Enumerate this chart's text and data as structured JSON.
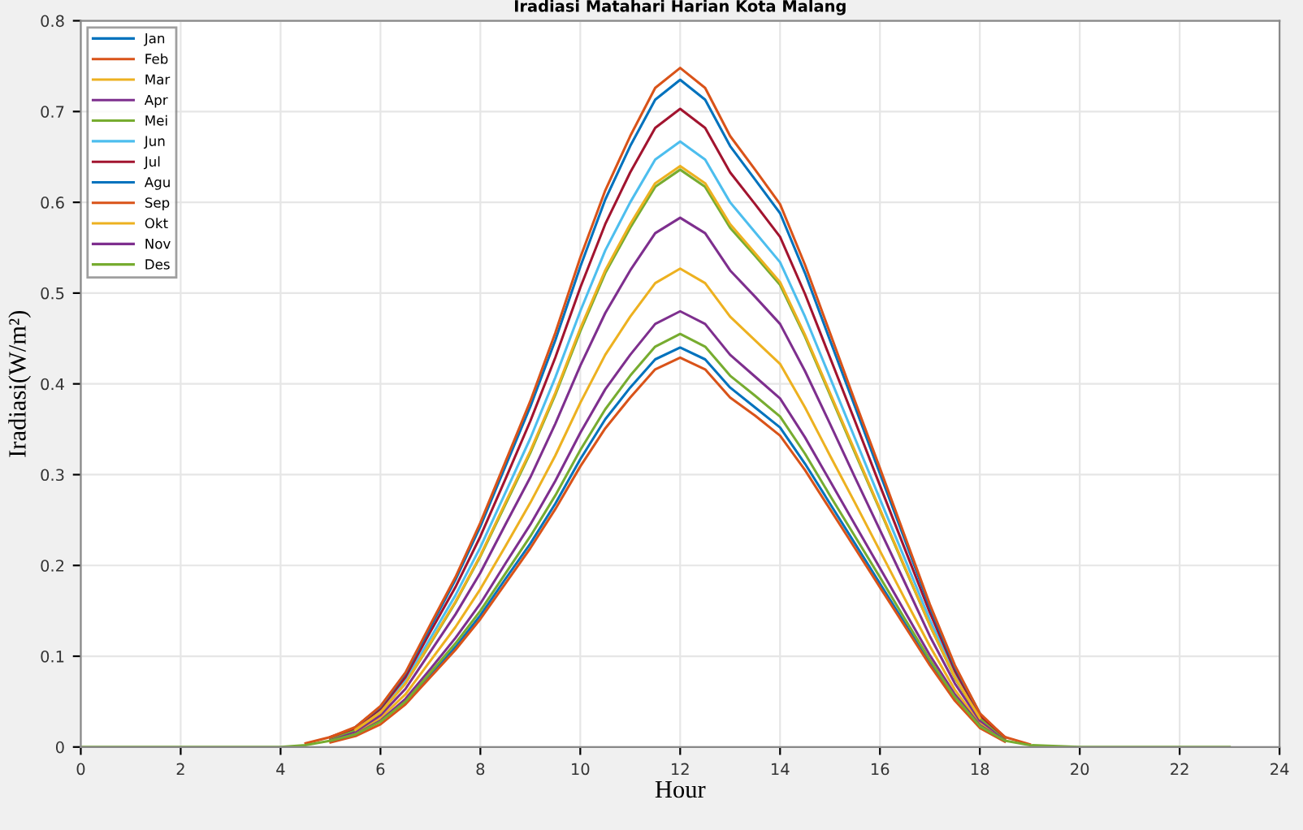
{
  "chart_data": {
    "type": "line",
    "title": "Iradiasi Matahari Harian Kota Malang",
    "xlabel": "Hour",
    "ylabel": "Iradiasi(W/m²)",
    "x": [
      0,
      4,
      4.5,
      5,
      5.5,
      6,
      6.5,
      7,
      7.5,
      8,
      8.5,
      9,
      9.5,
      10,
      10.5,
      11,
      11.5,
      12,
      12.5,
      13,
      13.5,
      14,
      14.5,
      15,
      15.5,
      16,
      16.5,
      17,
      17.5,
      18,
      18.5,
      19,
      20,
      23
    ],
    "xlim": [
      0,
      24
    ],
    "xticks": [
      0,
      2,
      4,
      6,
      8,
      10,
      12,
      14,
      16,
      18,
      20,
      22,
      24
    ],
    "ylim": [
      0,
      0.8
    ],
    "yticks": [
      0,
      0.1,
      0.2,
      0.3,
      0.4,
      0.5,
      0.6,
      0.7,
      0.8
    ],
    "grid": true,
    "legend": "top left",
    "series": [
      {
        "name": "Jan",
        "color": "#0072bd",
        "values": [
          null,
          null,
          null,
          null,
          null,
          null,
          0.048,
          0.079,
          0.11,
          0.145,
          0.185,
          0.224,
          0.268,
          0.317,
          0.361,
          0.396,
          0.427,
          0.44,
          0.427,
          0.396,
          0.374,
          0.352,
          0.312,
          0.268,
          0.224,
          0.18,
          0.136,
          0.092,
          0.053,
          null,
          null,
          null,
          null,
          null
        ]
      },
      {
        "name": "Feb",
        "color": "#d95319",
        "values": [
          null,
          null,
          null,
          0.005,
          0.012,
          0.025,
          0.047,
          0.077,
          0.107,
          0.141,
          0.18,
          0.219,
          0.262,
          0.309,
          0.351,
          0.385,
          0.416,
          0.429,
          0.416,
          0.385,
          0.365,
          0.343,
          0.305,
          0.262,
          0.219,
          0.176,
          0.133,
          0.09,
          0.051,
          0.021,
          0.006,
          null,
          null,
          null
        ]
      },
      {
        "name": "Mar",
        "color": "#edb120",
        "values": [
          null,
          null,
          null,
          0.008,
          0.016,
          0.032,
          0.058,
          0.095,
          0.132,
          0.174,
          0.221,
          0.269,
          0.321,
          0.379,
          0.432,
          0.474,
          0.511,
          0.527,
          0.511,
          0.474,
          0.448,
          0.422,
          0.374,
          0.321,
          0.269,
          0.216,
          0.163,
          0.111,
          0.063,
          0.026,
          0.008,
          null,
          null,
          null
        ]
      },
      {
        "name": "Apr",
        "color": "#7e2f8e",
        "values": [
          null,
          null,
          null,
          0.009,
          0.017,
          0.035,
          0.064,
          0.105,
          0.146,
          0.192,
          0.245,
          0.297,
          0.356,
          0.42,
          0.478,
          0.525,
          0.566,
          0.583,
          0.566,
          0.525,
          0.496,
          0.466,
          0.414,
          0.356,
          0.297,
          0.239,
          0.181,
          0.122,
          0.07,
          0.029,
          0.009,
          null,
          null,
          null
        ]
      },
      {
        "name": "Mei",
        "color": "#77ac30",
        "values": [
          null,
          null,
          null,
          0.01,
          0.019,
          0.038,
          0.07,
          0.114,
          0.159,
          0.21,
          0.267,
          0.324,
          0.388,
          0.458,
          0.522,
          0.572,
          0.617,
          0.636,
          0.617,
          0.572,
          0.541,
          0.509,
          0.452,
          0.388,
          0.324,
          0.261,
          0.197,
          0.134,
          0.076,
          0.032,
          0.01,
          null,
          null,
          null
        ]
      },
      {
        "name": "Jun",
        "color": "#4dbeee",
        "values": [
          null,
          null,
          null,
          null,
          0.02,
          0.04,
          0.073,
          0.12,
          0.167,
          0.22,
          0.28,
          0.34,
          0.407,
          0.48,
          0.547,
          0.6,
          0.647,
          0.667,
          0.647,
          0.6,
          0.567,
          0.534,
          0.474,
          0.407,
          0.34,
          0.273,
          0.207,
          0.14,
          0.08,
          0.033,
          null,
          null,
          null,
          null
        ]
      },
      {
        "name": "Jul",
        "color": "#a2142f",
        "values": [
          null,
          null,
          null,
          0.011,
          0.021,
          0.042,
          0.077,
          0.127,
          0.176,
          0.232,
          0.295,
          0.359,
          0.429,
          0.506,
          0.576,
          0.633,
          0.682,
          0.703,
          0.682,
          0.633,
          0.598,
          0.562,
          0.499,
          0.429,
          0.359,
          0.288,
          0.218,
          0.148,
          0.084,
          0.035,
          0.011,
          null,
          null,
          null
        ]
      },
      {
        "name": "Agu",
        "color": "#0072bd",
        "values": [
          null,
          null,
          null,
          null,
          0.022,
          0.044,
          0.081,
          0.132,
          0.184,
          0.243,
          0.309,
          0.375,
          0.448,
          0.529,
          0.603,
          0.662,
          0.713,
          0.735,
          0.713,
          0.662,
          0.625,
          0.588,
          0.522,
          0.448,
          0.375,
          0.301,
          0.228,
          0.154,
          0.088,
          0.037,
          null,
          null,
          null,
          null
        ]
      },
      {
        "name": "Sep",
        "color": "#d95319",
        "values": [
          null,
          null,
          0.004,
          0.011,
          0.022,
          0.045,
          0.082,
          0.135,
          0.187,
          0.247,
          0.314,
          0.381,
          0.456,
          0.539,
          0.613,
          0.673,
          0.726,
          0.748,
          0.726,
          0.673,
          0.636,
          0.598,
          0.531,
          0.456,
          0.381,
          0.307,
          0.232,
          0.157,
          0.09,
          0.037,
          0.011,
          0.003,
          null,
          null
        ]
      },
      {
        "name": "Okt",
        "color": "#edb120",
        "values": [
          null,
          null,
          null,
          null,
          0.019,
          0.038,
          0.07,
          0.115,
          0.16,
          0.211,
          0.269,
          0.326,
          0.39,
          0.461,
          0.525,
          0.576,
          0.621,
          0.64,
          0.621,
          0.576,
          0.544,
          0.512,
          0.454,
          0.39,
          0.326,
          0.262,
          0.198,
          0.134,
          0.077,
          0.032,
          null,
          null,
          null,
          null
        ]
      },
      {
        "name": "Nov",
        "color": "#7e2f8e",
        "values": [
          null,
          null,
          null,
          0.007,
          0.014,
          0.029,
          0.053,
          0.086,
          0.12,
          0.158,
          0.202,
          0.245,
          0.293,
          0.346,
          0.394,
          0.432,
          0.466,
          0.48,
          0.466,
          0.432,
          0.408,
          0.384,
          0.341,
          0.293,
          0.245,
          0.197,
          0.149,
          0.101,
          0.058,
          0.024,
          0.007,
          null,
          null,
          null
        ]
      },
      {
        "name": "Des",
        "color": "#77ac30",
        "values": [
          0,
          0,
          0.002,
          0.007,
          0.014,
          0.028,
          0.05,
          0.082,
          0.114,
          0.15,
          0.191,
          0.232,
          0.277,
          0.327,
          0.372,
          0.409,
          0.441,
          0.455,
          0.441,
          0.409,
          0.387,
          0.364,
          0.323,
          0.277,
          0.232,
          0.187,
          0.141,
          0.096,
          0.055,
          0.023,
          0.007,
          0.002,
          0,
          0
        ]
      }
    ]
  }
}
